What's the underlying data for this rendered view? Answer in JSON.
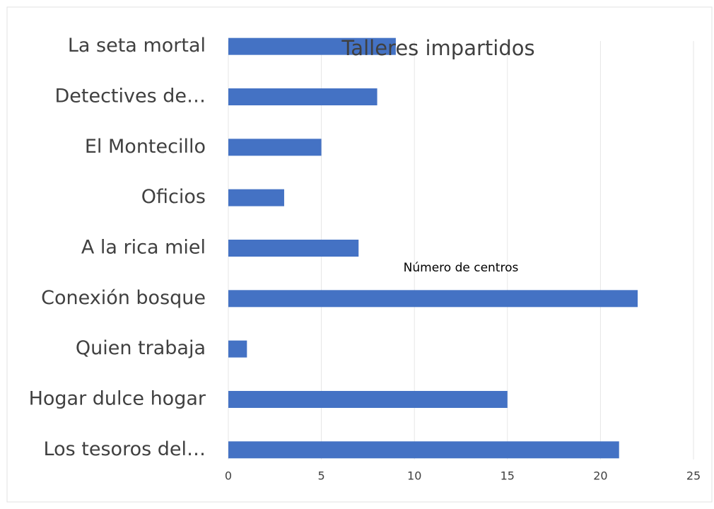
{
  "chart_data": {
    "type": "bar",
    "orientation": "horizontal",
    "title": "Talleres impartidos",
    "x_label": "Número de centros",
    "categories": [
      "La seta mortal",
      "Detectives de…",
      "El Montecillo",
      "Oficios",
      "A la rica miel",
      "Conexión bosque",
      "Quien trabaja",
      "Hogar dulce hogar",
      "Los tesoros del…"
    ],
    "values": [
      9,
      8,
      5,
      3,
      7,
      22,
      1,
      15,
      21
    ],
    "color": "#4472c4",
    "xlim": [
      0,
      25
    ],
    "xticks": [
      0,
      5,
      10,
      15,
      20,
      25
    ],
    "grid": true
  }
}
